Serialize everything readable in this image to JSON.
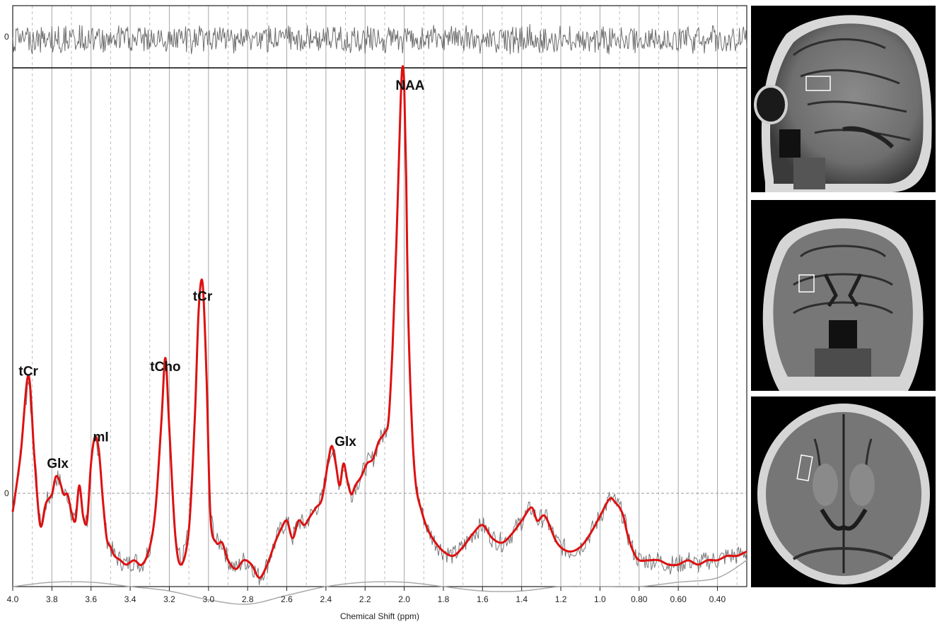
{
  "chart_data": {
    "type": "line",
    "xlabel": "Chemical Shift (ppm)",
    "xlim": [
      4.0,
      0.25
    ],
    "x_reversed": true,
    "ylim": [
      -0.18,
      1.0
    ],
    "grid": true,
    "x_ticks": [
      "4.0",
      "3.8",
      "3.6",
      "3.4",
      "3.2",
      "3.0",
      "2.8",
      "2.6",
      "2.4",
      "2.2",
      "2.0",
      "1.8",
      "1.6",
      "1.4",
      "1.2",
      "1.0",
      "0.80",
      "0.60",
      "0.40"
    ],
    "x_tick_values": [
      4.0,
      3.8,
      3.6,
      3.4,
      3.2,
      3.0,
      2.8,
      2.6,
      2.4,
      2.2,
      2.0,
      1.8,
      1.6,
      1.4,
      1.2,
      1.0,
      0.8,
      0.6,
      0.4
    ],
    "peak_labels": [
      {
        "text": "tCr",
        "x": 3.92,
        "y": 0.3
      },
      {
        "text": "Glx",
        "x": 3.77,
        "y": 0.09
      },
      {
        "text": "mI",
        "x": 3.55,
        "y": 0.15
      },
      {
        "text": "tCho",
        "x": 3.22,
        "y": 0.31
      },
      {
        "text": "tCr",
        "x": 3.03,
        "y": 0.47
      },
      {
        "text": "Glx",
        "x": 2.3,
        "y": 0.14
      },
      {
        "text": "NAA",
        "x": 1.97,
        "y": 0.95
      }
    ],
    "series": [
      {
        "role": "fit",
        "color": "#dd1111",
        "x": [
          4.0,
          3.96,
          3.92,
          3.89,
          3.86,
          3.83,
          3.8,
          3.78,
          3.76,
          3.74,
          3.72,
          3.7,
          3.68,
          3.66,
          3.64,
          3.62,
          3.6,
          3.58,
          3.56,
          3.54,
          3.52,
          3.5,
          3.48,
          3.45,
          3.42,
          3.38,
          3.34,
          3.3,
          3.27,
          3.24,
          3.22,
          3.2,
          3.17,
          3.14,
          3.1,
          3.07,
          3.05,
          3.03,
          3.01,
          2.99,
          2.96,
          2.93,
          2.9,
          2.86,
          2.82,
          2.78,
          2.74,
          2.7,
          2.66,
          2.63,
          2.6,
          2.57,
          2.54,
          2.51,
          2.48,
          2.45,
          2.42,
          2.39,
          2.37,
          2.35,
          2.33,
          2.31,
          2.29,
          2.27,
          2.25,
          2.22,
          2.19,
          2.16,
          2.13,
          2.1,
          2.08,
          2.06,
          2.04,
          2.02,
          2.01,
          2.0,
          1.99,
          1.98,
          1.96,
          1.94,
          1.91,
          1.88,
          1.84,
          1.8,
          1.75,
          1.7,
          1.65,
          1.6,
          1.55,
          1.5,
          1.45,
          1.4,
          1.35,
          1.32,
          1.28,
          1.22,
          1.16,
          1.1,
          1.05,
          1.0,
          0.95,
          0.92,
          0.9,
          0.88,
          0.86,
          0.83,
          0.8,
          0.75,
          0.7,
          0.65,
          0.6,
          0.55,
          0.5,
          0.45,
          0.4,
          0.35,
          0.3,
          0.25
        ],
        "y": [
          -0.01,
          0.12,
          0.3,
          0.12,
          -0.04,
          0.01,
          0.03,
          0.07,
          0.06,
          0.03,
          0.03,
          -0.01,
          -0.03,
          0.05,
          -0.02,
          -0.03,
          0.1,
          0.16,
          0.13,
          0.02,
          -0.07,
          -0.09,
          -0.11,
          -0.12,
          -0.13,
          -0.12,
          -0.13,
          -0.09,
          0.0,
          0.2,
          0.34,
          0.18,
          -0.06,
          -0.13,
          -0.05,
          0.2,
          0.45,
          0.51,
          0.3,
          -0.02,
          -0.08,
          -0.08,
          -0.12,
          -0.14,
          -0.12,
          -0.13,
          -0.16,
          -0.13,
          -0.08,
          -0.05,
          -0.03,
          -0.07,
          -0.03,
          -0.04,
          -0.02,
          0.0,
          0.02,
          0.1,
          0.14,
          0.1,
          0.05,
          0.1,
          0.06,
          0.03,
          0.05,
          0.07,
          0.1,
          0.11,
          0.15,
          0.17,
          0.2,
          0.36,
          0.6,
          0.9,
          1.0,
          0.96,
          0.75,
          0.45,
          0.18,
          0.05,
          -0.01,
          -0.05,
          -0.08,
          -0.1,
          -0.11,
          -0.09,
          -0.06,
          -0.04,
          -0.07,
          -0.08,
          -0.06,
          -0.03,
          0.0,
          -0.03,
          -0.02,
          -0.08,
          -0.1,
          -0.09,
          -0.06,
          -0.02,
          0.02,
          0.01,
          0.0,
          -0.02,
          -0.06,
          -0.1,
          -0.12,
          -0.12,
          -0.12,
          -0.13,
          -0.13,
          -0.12,
          -0.13,
          -0.12,
          -0.12,
          -0.11,
          -0.11,
          -0.1
        ]
      },
      {
        "role": "baseline",
        "color": "#aaaaaa",
        "x": [
          4.0,
          3.8,
          3.6,
          3.4,
          3.2,
          3.0,
          2.8,
          2.6,
          2.4,
          2.2,
          2.0,
          1.8,
          1.6,
          1.4,
          1.2,
          1.0,
          0.8,
          0.6,
          0.4,
          0.25
        ],
        "y": [
          -0.18,
          -0.17,
          -0.17,
          -0.18,
          -0.19,
          -0.21,
          -0.22,
          -0.2,
          -0.18,
          -0.17,
          -0.17,
          -0.18,
          -0.19,
          -0.19,
          -0.18,
          -0.18,
          -0.18,
          -0.17,
          -0.16,
          -0.12
        ]
      }
    ]
  },
  "residual": {
    "y_zero_label": "0"
  },
  "ticks": {
    "zero_label": "0"
  },
  "colors": {
    "fit": "#dd1111",
    "data": "#777777",
    "grid": "#9a9a9a"
  },
  "mri_views": [
    {
      "name": "sagittal"
    },
    {
      "name": "coronal"
    },
    {
      "name": "axial"
    }
  ]
}
